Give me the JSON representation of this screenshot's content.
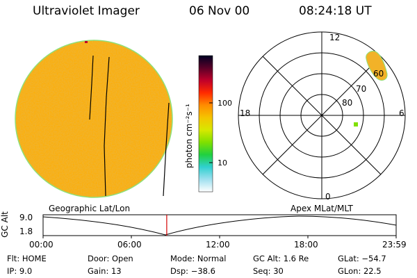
{
  "header": {
    "instrument": "Ultraviolet Imager",
    "date": "06 Nov 00",
    "time": "08:24:18 UT"
  },
  "colors": {
    "disk_base": "#f2b228",
    "disk_rim": "#8fe07a",
    "track_line": "#000000",
    "timeline_marker": "#d40000"
  },
  "colorbar": {
    "label": "photon cm⁻²s⁻¹",
    "ticks": [
      "100",
      "10"
    ],
    "stops": [
      "#000022",
      "#5a0028",
      "#c0002a",
      "#ff2a00",
      "#ff8c00",
      "#f5c400",
      "#d8e800",
      "#80e000",
      "#20d040",
      "#30d0d0",
      "#9fe0ef",
      "#ffffff"
    ]
  },
  "polar_plot": {
    "lat_labels": [
      "60",
      "70",
      "80"
    ],
    "mlt_labels": {
      "top": "12",
      "bottom": "0",
      "left": "18",
      "right": "6"
    }
  },
  "timeline": {
    "left_title": "Geographic Lat/Lon",
    "right_title": "Apex MLat/MLT",
    "axis_label": "GC Alt",
    "y_ticks": [
      "9.0",
      "1.8"
    ],
    "x_ticks": [
      "00:00",
      "06:00",
      "12:00",
      "18:00",
      "23:59"
    ],
    "current_time_hours": 8.405
  },
  "info": {
    "row1": [
      {
        "label": "Flt:",
        "value": "HOME"
      },
      {
        "label": "Door:",
        "value": "Open"
      },
      {
        "label": "Mode:",
        "value": "Normal"
      },
      {
        "label": "GC Alt:",
        "value": "1.6 Re"
      },
      {
        "label": "GLat:",
        "value": "−54.7"
      }
    ],
    "row2": [
      {
        "label": "IP:",
        "value": "9.0"
      },
      {
        "label": "Gain:",
        "value": "13"
      },
      {
        "label": "Dsp:",
        "value": "−38.6"
      },
      {
        "label": "Seq:",
        "value": "30"
      },
      {
        "label": "GLon:",
        "value": "22.5"
      }
    ]
  }
}
